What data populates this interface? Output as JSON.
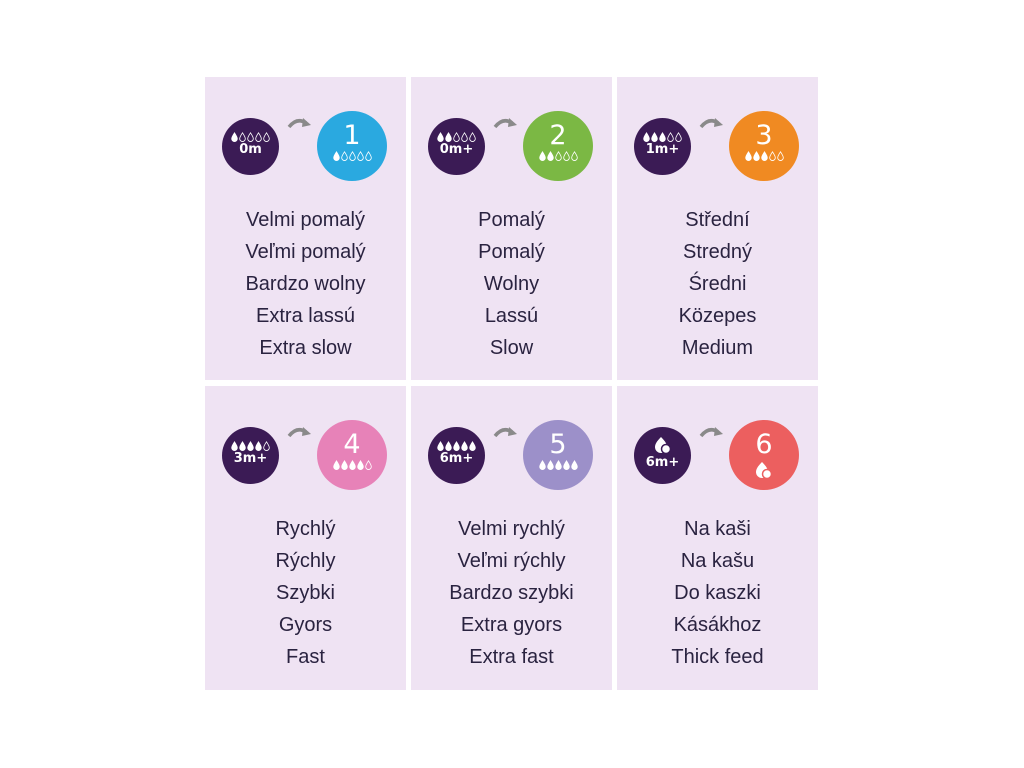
{
  "cells": [
    {
      "age": "0m",
      "level": "1",
      "drops": 1,
      "color": "#2aa9e0",
      "names": [
        "Velmi pomalý",
        "Veľmi pomalý",
        "Bardzo wolny",
        "Extra lassú",
        "Extra slow"
      ]
    },
    {
      "age": "0m+",
      "level": "2",
      "drops": 2,
      "color": "#7bb844",
      "names": [
        "Pomalý",
        "Pomalý",
        "Wolny",
        "Lassú",
        "Slow"
      ]
    },
    {
      "age": "1m+",
      "level": "3",
      "drops": 3,
      "color": "#f08a22",
      "names": [
        "Střední",
        "Stredný",
        "Średni",
        "Közepes",
        "Medium"
      ]
    },
    {
      "age": "3m+",
      "level": "4",
      "drops": 4,
      "color": "#e782b8",
      "names": [
        "Rychlý",
        "Rýchly",
        "Szybki",
        "Gyors",
        "Fast"
      ]
    },
    {
      "age": "6m+",
      "level": "5",
      "drops": 5,
      "color": "#9c90c9",
      "names": [
        "Velmi rychlý",
        "Veľmi rýchly",
        "Bardzo szybki",
        "Extra gyors",
        "Extra fast"
      ]
    },
    {
      "age": "6m+",
      "level": "6",
      "drops": "thick",
      "color": "#ec5f5f",
      "names": [
        "Na kaši",
        "Na kašu",
        "Do kaszki",
        "Kásákhoz",
        "Thick feed"
      ]
    }
  ],
  "icons": {
    "drop": "drop-icon",
    "thick": "thick-feed-icon",
    "arrow": "curved-arrow-icon"
  },
  "colors": {
    "background": "#efe3f3",
    "age_circle": "#3b1b55",
    "text": "#2a2340"
  }
}
